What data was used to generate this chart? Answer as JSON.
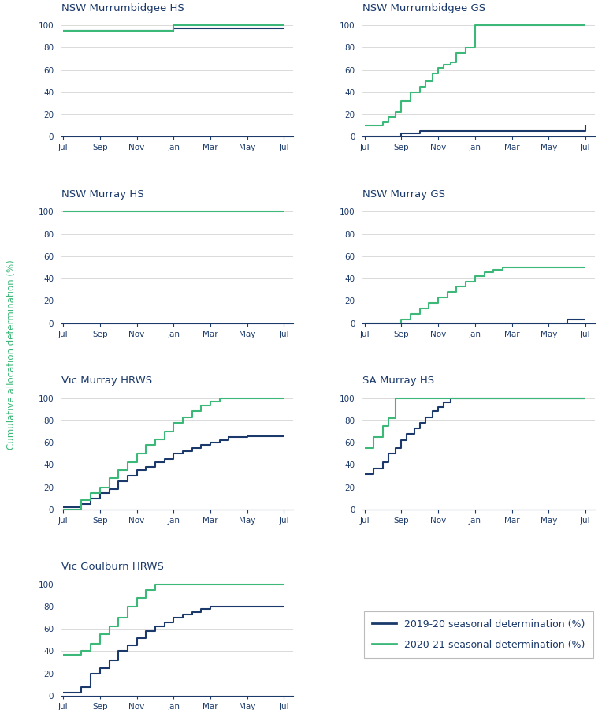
{
  "color_2019": "#1b3a6b",
  "color_2020": "#3cb878",
  "bg_color": "#ffffff",
  "grid_color": "#cccccc",
  "title_color": "#1b3a6b",
  "axis_color": "#1b3a6b",
  "tick_color": "#1b3a6b",
  "ylabel_text": "Cumulative allocation determination (%)",
  "ylabel_color": "#3cb878",
  "legend_label_2019": "2019-20 seasonal determination (%)",
  "legend_label_2020": "2020-21 seasonal determination (%)",
  "subplots": [
    {
      "title": "NSW Murrumbidgee HS",
      "row": 0,
      "col": 0,
      "data_2019": [
        [
          0,
          95
        ],
        [
          6,
          95
        ],
        [
          6,
          97
        ],
        [
          12,
          97
        ]
      ],
      "data_2020": [
        [
          0,
          95
        ],
        [
          6,
          95
        ],
        [
          6,
          100
        ],
        [
          12,
          100
        ]
      ],
      "ylim": [
        0,
        110
      ]
    },
    {
      "title": "NSW Murrumbidgee GS",
      "row": 0,
      "col": 1,
      "data_2019": [
        [
          0,
          0
        ],
        [
          2,
          0
        ],
        [
          2,
          3
        ],
        [
          3,
          3
        ],
        [
          3,
          5
        ],
        [
          12,
          5
        ],
        [
          12,
          11
        ],
        [
          12,
          11
        ]
      ],
      "data_2020": [
        [
          0,
          10
        ],
        [
          1,
          10
        ],
        [
          1,
          13
        ],
        [
          1.3,
          13
        ],
        [
          1.3,
          18
        ],
        [
          1.7,
          18
        ],
        [
          1.7,
          22
        ],
        [
          2,
          22
        ],
        [
          2,
          32
        ],
        [
          2.5,
          32
        ],
        [
          2.5,
          40
        ],
        [
          3,
          40
        ],
        [
          3,
          45
        ],
        [
          3.3,
          45
        ],
        [
          3.3,
          50
        ],
        [
          3.7,
          50
        ],
        [
          3.7,
          57
        ],
        [
          4,
          57
        ],
        [
          4,
          62
        ],
        [
          4.3,
          62
        ],
        [
          4.3,
          65
        ],
        [
          4.7,
          65
        ],
        [
          4.7,
          67
        ],
        [
          5,
          67
        ],
        [
          5,
          75
        ],
        [
          5.5,
          75
        ],
        [
          5.5,
          80
        ],
        [
          6,
          80
        ],
        [
          6,
          100
        ],
        [
          12,
          100
        ]
      ],
      "ylim": [
        0,
        110
      ]
    },
    {
      "title": "NSW Murray HS",
      "row": 1,
      "col": 0,
      "data_2019": [],
      "data_2020": [
        [
          0,
          100
        ],
        [
          12,
          100
        ]
      ],
      "ylim": [
        0,
        110
      ]
    },
    {
      "title": "NSW Murray GS",
      "row": 1,
      "col": 1,
      "data_2019": [
        [
          0,
          0
        ],
        [
          11,
          0
        ],
        [
          11,
          3
        ],
        [
          12,
          3
        ]
      ],
      "data_2020": [
        [
          0,
          0
        ],
        [
          2,
          0
        ],
        [
          2,
          3
        ],
        [
          2.5,
          3
        ],
        [
          2.5,
          8
        ],
        [
          3,
          8
        ],
        [
          3,
          13
        ],
        [
          3.5,
          13
        ],
        [
          3.5,
          18
        ],
        [
          4,
          18
        ],
        [
          4,
          23
        ],
        [
          4.5,
          23
        ],
        [
          4.5,
          28
        ],
        [
          5,
          28
        ],
        [
          5,
          33
        ],
        [
          5.5,
          33
        ],
        [
          5.5,
          37
        ],
        [
          6,
          37
        ],
        [
          6,
          42
        ],
        [
          6.5,
          42
        ],
        [
          6.5,
          46
        ],
        [
          7,
          46
        ],
        [
          7,
          48
        ],
        [
          7.5,
          48
        ],
        [
          7.5,
          50
        ],
        [
          12,
          50
        ]
      ],
      "ylim": [
        0,
        110
      ]
    },
    {
      "title": "Vic Murray HRWS",
      "row": 2,
      "col": 0,
      "data_2019": [
        [
          0,
          2
        ],
        [
          1,
          2
        ],
        [
          1,
          5
        ],
        [
          1.5,
          5
        ],
        [
          1.5,
          10
        ],
        [
          2,
          10
        ],
        [
          2,
          15
        ],
        [
          2.5,
          15
        ],
        [
          2.5,
          18
        ],
        [
          3,
          18
        ],
        [
          3,
          25
        ],
        [
          3.5,
          25
        ],
        [
          3.5,
          30
        ],
        [
          4,
          30
        ],
        [
          4,
          35
        ],
        [
          4.5,
          35
        ],
        [
          4.5,
          38
        ],
        [
          5,
          38
        ],
        [
          5,
          42
        ],
        [
          5.5,
          42
        ],
        [
          5.5,
          45
        ],
        [
          6,
          45
        ],
        [
          6,
          50
        ],
        [
          6.5,
          50
        ],
        [
          6.5,
          52
        ],
        [
          7,
          52
        ],
        [
          7,
          55
        ],
        [
          7.5,
          55
        ],
        [
          7.5,
          58
        ],
        [
          8,
          58
        ],
        [
          8,
          60
        ],
        [
          8.5,
          60
        ],
        [
          8.5,
          62
        ],
        [
          9,
          62
        ],
        [
          9,
          65
        ],
        [
          10,
          65
        ],
        [
          10,
          66
        ],
        [
          12,
          66
        ]
      ],
      "data_2020": [
        [
          0,
          0
        ],
        [
          1,
          0
        ],
        [
          1,
          8
        ],
        [
          1.5,
          8
        ],
        [
          1.5,
          15
        ],
        [
          2,
          15
        ],
        [
          2,
          20
        ],
        [
          2.5,
          20
        ],
        [
          2.5,
          28
        ],
        [
          3,
          28
        ],
        [
          3,
          35
        ],
        [
          3.5,
          35
        ],
        [
          3.5,
          42
        ],
        [
          4,
          42
        ],
        [
          4,
          50
        ],
        [
          4.5,
          50
        ],
        [
          4.5,
          58
        ],
        [
          5,
          58
        ],
        [
          5,
          63
        ],
        [
          5.5,
          63
        ],
        [
          5.5,
          70
        ],
        [
          6,
          70
        ],
        [
          6,
          78
        ],
        [
          6.5,
          78
        ],
        [
          6.5,
          83
        ],
        [
          7,
          83
        ],
        [
          7,
          88
        ],
        [
          7.5,
          88
        ],
        [
          7.5,
          93
        ],
        [
          8,
          93
        ],
        [
          8,
          97
        ],
        [
          8.5,
          97
        ],
        [
          8.5,
          100
        ],
        [
          12,
          100
        ]
      ],
      "ylim": [
        0,
        110
      ]
    },
    {
      "title": "SA Murray HS",
      "row": 2,
      "col": 1,
      "data_2019": [
        [
          0,
          32
        ],
        [
          0.5,
          32
        ],
        [
          0.5,
          37
        ],
        [
          1,
          37
        ],
        [
          1,
          42
        ],
        [
          1.3,
          42
        ],
        [
          1.3,
          50
        ],
        [
          1.7,
          50
        ],
        [
          1.7,
          55
        ],
        [
          2,
          55
        ],
        [
          2,
          62
        ],
        [
          2.3,
          62
        ],
        [
          2.3,
          68
        ],
        [
          2.7,
          68
        ],
        [
          2.7,
          73
        ],
        [
          3,
          73
        ],
        [
          3,
          78
        ],
        [
          3.3,
          78
        ],
        [
          3.3,
          83
        ],
        [
          3.7,
          83
        ],
        [
          3.7,
          88
        ],
        [
          4,
          88
        ],
        [
          4,
          92
        ],
        [
          4.3,
          92
        ],
        [
          4.3,
          96
        ],
        [
          4.7,
          96
        ],
        [
          4.7,
          100
        ],
        [
          12,
          100
        ]
      ],
      "data_2020": [
        [
          0,
          55
        ],
        [
          0.5,
          55
        ],
        [
          0.5,
          65
        ],
        [
          1,
          65
        ],
        [
          1,
          75
        ],
        [
          1.3,
          75
        ],
        [
          1.3,
          82
        ],
        [
          1.7,
          82
        ],
        [
          1.7,
          100
        ],
        [
          12,
          100
        ]
      ],
      "ylim": [
        0,
        110
      ]
    },
    {
      "title": "Vic Goulburn HRWS",
      "row": 3,
      "col": 0,
      "data_2019": [
        [
          0,
          3
        ],
        [
          1,
          3
        ],
        [
          1,
          8
        ],
        [
          1.5,
          8
        ],
        [
          1.5,
          20
        ],
        [
          2,
          20
        ],
        [
          2,
          25
        ],
        [
          2.5,
          25
        ],
        [
          2.5,
          32
        ],
        [
          3,
          32
        ],
        [
          3,
          40
        ],
        [
          3.5,
          40
        ],
        [
          3.5,
          45
        ],
        [
          4,
          45
        ],
        [
          4,
          52
        ],
        [
          4.5,
          52
        ],
        [
          4.5,
          58
        ],
        [
          5,
          58
        ],
        [
          5,
          62
        ],
        [
          5.5,
          62
        ],
        [
          5.5,
          66
        ],
        [
          6,
          66
        ],
        [
          6,
          70
        ],
        [
          6.5,
          70
        ],
        [
          6.5,
          73
        ],
        [
          7,
          73
        ],
        [
          7,
          75
        ],
        [
          7.5,
          75
        ],
        [
          7.5,
          78
        ],
        [
          8,
          78
        ],
        [
          8,
          80
        ],
        [
          12,
          80
        ]
      ],
      "data_2020": [
        [
          0,
          37
        ],
        [
          1,
          37
        ],
        [
          1,
          40
        ],
        [
          1.5,
          40
        ],
        [
          1.5,
          47
        ],
        [
          2,
          47
        ],
        [
          2,
          55
        ],
        [
          2.5,
          55
        ],
        [
          2.5,
          62
        ],
        [
          3,
          62
        ],
        [
          3,
          70
        ],
        [
          3.5,
          70
        ],
        [
          3.5,
          80
        ],
        [
          4,
          80
        ],
        [
          4,
          88
        ],
        [
          4.5,
          88
        ],
        [
          4.5,
          95
        ],
        [
          5,
          95
        ],
        [
          5,
          100
        ],
        [
          12,
          100
        ]
      ],
      "ylim": [
        0,
        110
      ]
    }
  ],
  "x_ticks": [
    0,
    2,
    4,
    6,
    8,
    10,
    12
  ],
  "x_tick_labels": [
    "Jul",
    "Sep",
    "Nov",
    "Jan",
    "Mar",
    "May",
    "Jul"
  ],
  "y_ticks": [
    0,
    20,
    40,
    60,
    80,
    100
  ],
  "x_lim": [
    -0.1,
    12.5
  ]
}
